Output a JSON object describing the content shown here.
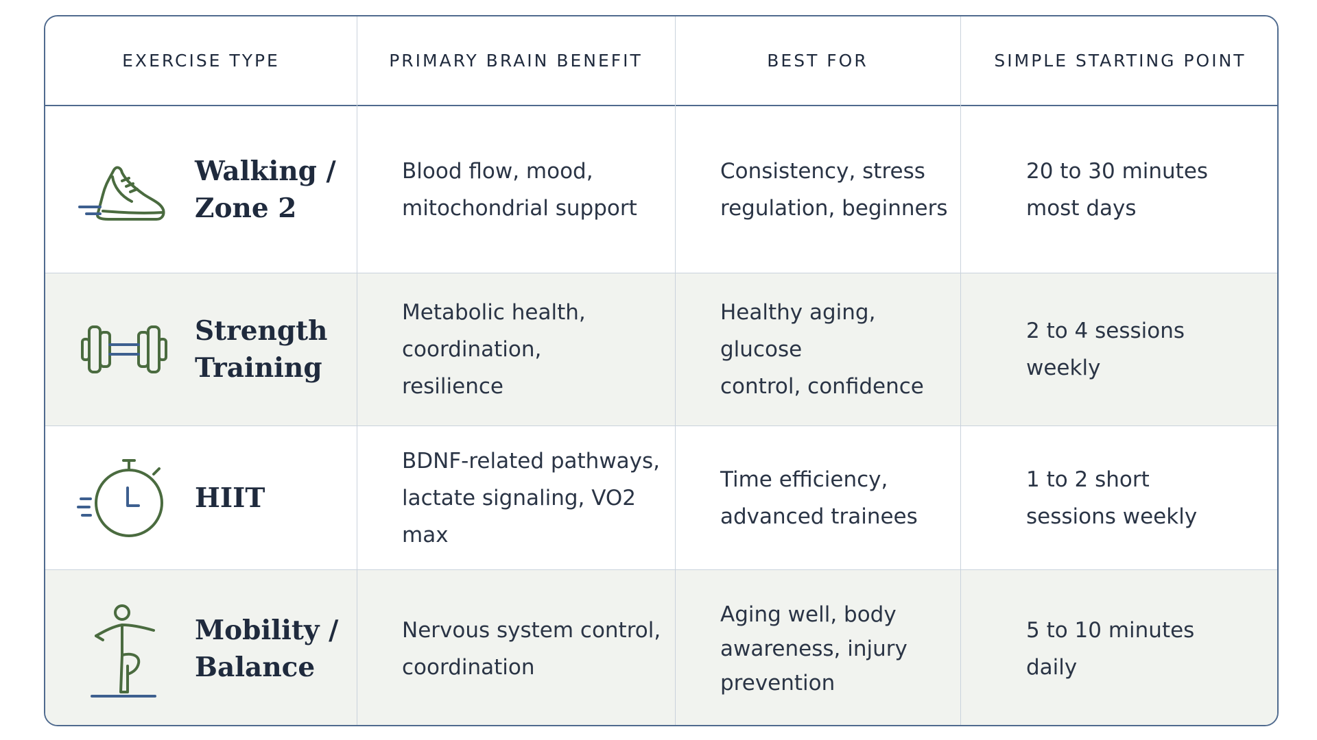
{
  "headers": {
    "exercise_type": "EXERCISE TYPE",
    "primary_brain_benefit": "PRIMARY BRAIN BENEFIT",
    "best_for": "BEST FOR",
    "simple_starting_point": "SIMPLE STARTING POINT"
  },
  "rows": [
    {
      "icon": "running-shoe-icon",
      "type_line1": "Walking /",
      "type_line2": "Zone 2",
      "benefit_line1": "Blood flow, mood,",
      "benefit_line2": "mitochondrial support",
      "best_line1": "Consistency, stress",
      "best_line2": "regulation, beginners",
      "start_line1": "20 to 30 minutes",
      "start_line2": "most days"
    },
    {
      "icon": "dumbbell-icon",
      "type_line1": "Strength",
      "type_line2": "Training",
      "benefit_line1": "Metabolic health,",
      "benefit_line2": "coordination, resilience",
      "best_line1": "Healthy aging, glucose",
      "best_line2": "control, confidence",
      "start_line1": "2 to 4 sessions",
      "start_line2": "weekly"
    },
    {
      "icon": "stopwatch-icon",
      "type_line1": "HIIT",
      "benefit_line1": "BDNF-related pathways,",
      "benefit_line2": "lactate signaling, VO2 max",
      "best_line1": "Time efficiency,",
      "best_line2": "advanced trainees",
      "start_line1": "1 to 2 short",
      "start_line2": "sessions weekly"
    },
    {
      "icon": "balance-figure-icon",
      "type_line1": "Mobility /",
      "type_line2": "Balance",
      "benefit_line1": "Nervous system control,",
      "benefit_line2": "coordination",
      "best_line1": "Aging well, body",
      "best_line2": "awareness, injury",
      "best_line3": "prevention",
      "start_line1": "5 to 10 minutes",
      "start_line2": "daily"
    }
  ],
  "colors": {
    "border": "#4f6a8e",
    "grid": "#c9d2dc",
    "icon_green": "#4a6b3f",
    "icon_blue": "#3d5f8f",
    "alt_row": "#f1f3ef"
  }
}
